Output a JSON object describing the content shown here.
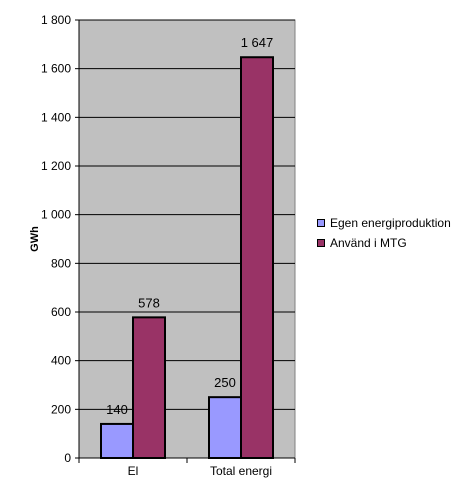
{
  "chart_data": {
    "type": "bar",
    "categories": [
      "El",
      "Total energi"
    ],
    "series": [
      {
        "name": "Egen energiproduktion",
        "values": [
          140,
          250
        ],
        "color": "#9999ff"
      },
      {
        "name": "Använd i MTG",
        "values": [
          578,
          1647
        ],
        "color": "#993366"
      }
    ],
    "data_labels": [
      [
        "140",
        "578"
      ],
      [
        "250",
        "1 647"
      ]
    ],
    "ylabel": "GWh",
    "ylim": [
      0,
      1800
    ],
    "yticks": [
      0,
      200,
      400,
      600,
      800,
      1000,
      1200,
      1400,
      1600,
      1800
    ],
    "ytick_labels": [
      "0",
      "200",
      "400",
      "600",
      "800",
      "1 000",
      "1 200",
      "1 400",
      "1 600",
      "1 800"
    ],
    "plot_background": "#c0c0c0",
    "grid": true,
    "legend_position": "right"
  }
}
